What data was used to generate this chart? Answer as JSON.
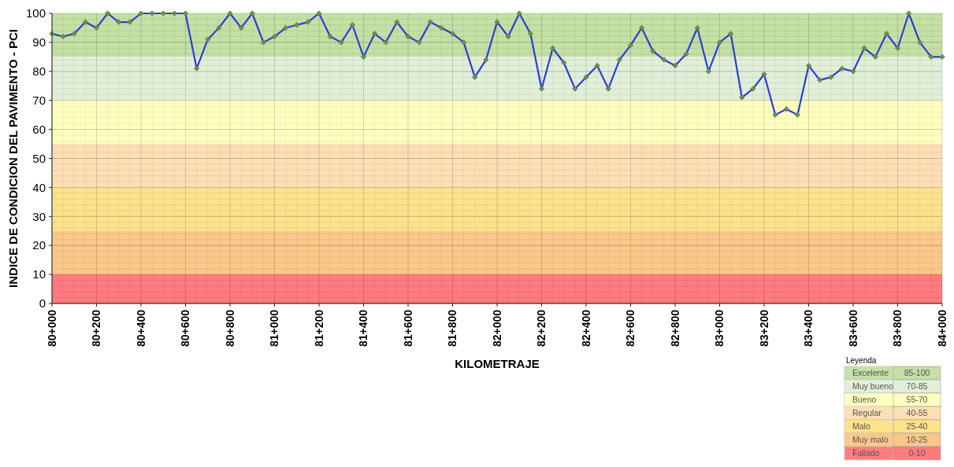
{
  "chart_data": {
    "type": "line",
    "xlabel": "KILOMETRAJE",
    "ylabel": "INDICE DE CONDICION DEL PAVIMENTO - PCI",
    "legend_title": "Leyenda",
    "legend": "bottom right",
    "grid": true,
    "marker": "diamond",
    "line_style": "solid",
    "categories": [
      "80+000",
      null,
      null,
      null,
      "80+200",
      null,
      null,
      null,
      "80+400",
      null,
      null,
      null,
      "80+600",
      null,
      null,
      null,
      "80+800",
      null,
      null,
      null,
      "81+000",
      null,
      null,
      null,
      "81+200",
      null,
      null,
      null,
      "81+400",
      null,
      null,
      null,
      "81+600",
      null,
      null,
      null,
      "81+800",
      null,
      null,
      null,
      "82+000",
      null,
      null,
      null,
      "82+200",
      null,
      null,
      null,
      "82+400",
      null,
      null,
      null,
      "82+600",
      null,
      null,
      null,
      "82+800",
      null,
      null,
      null,
      "83+000",
      null,
      null,
      null,
      "83+200",
      null,
      null,
      null,
      "83+400",
      null,
      null,
      null,
      "83+600",
      null,
      null,
      null,
      "83+800",
      null,
      null,
      null,
      "84+000"
    ],
    "series": [
      {
        "color": "#2a3fd4",
        "values": [
          93,
          92,
          93,
          97,
          95,
          100,
          97,
          97,
          100,
          100,
          100,
          100,
          100,
          81,
          91,
          95,
          100,
          95,
          100,
          90,
          92,
          95,
          96,
          97,
          100,
          92,
          90,
          96,
          85,
          93,
          90,
          97,
          92,
          90,
          97,
          95,
          93,
          90,
          78,
          84,
          97,
          92,
          100,
          93,
          74,
          88,
          83,
          74,
          78,
          82,
          74,
          84,
          89,
          95,
          87,
          84,
          82,
          86,
          95,
          80,
          90,
          93,
          71,
          74,
          79,
          65,
          67,
          65,
          82,
          77,
          78,
          81,
          80,
          88,
          85,
          93,
          88,
          100,
          90,
          85,
          85
        ]
      }
    ],
    "ylim": [
      0,
      100
    ],
    "yticks": [
      0,
      10,
      20,
      30,
      40,
      50,
      60,
      70,
      80,
      90,
      100
    ],
    "bands": [
      {
        "axis": "y",
        "from": 85,
        "to": 100,
        "label": "Excelente",
        "color": "#c4e0a4"
      },
      {
        "axis": "y",
        "from": 70,
        "to": 85,
        "label": "Muy bueno",
        "color": "#e2efd8"
      },
      {
        "axis": "y",
        "from": 55,
        "to": 70,
        "label": "Bueno",
        "color": "#ffffbf"
      },
      {
        "axis": "y",
        "from": 40,
        "to": 55,
        "label": "Regular",
        "color": "#fddfb4"
      },
      {
        "axis": "y",
        "from": 25,
        "to": 40,
        "label": "Malo",
        "color": "#fde28c"
      },
      {
        "axis": "y",
        "from": 10,
        "to": 25,
        "label": "Muy malo",
        "color": "#fbc88a"
      },
      {
        "axis": "y",
        "from": 0,
        "to": 10,
        "label": "Fallado",
        "color": "#ff7b7f"
      }
    ],
    "annotations": [
      "85-100",
      "70-85",
      "55-70",
      "40-55",
      "25-40",
      "10-25",
      "0-10"
    ]
  }
}
